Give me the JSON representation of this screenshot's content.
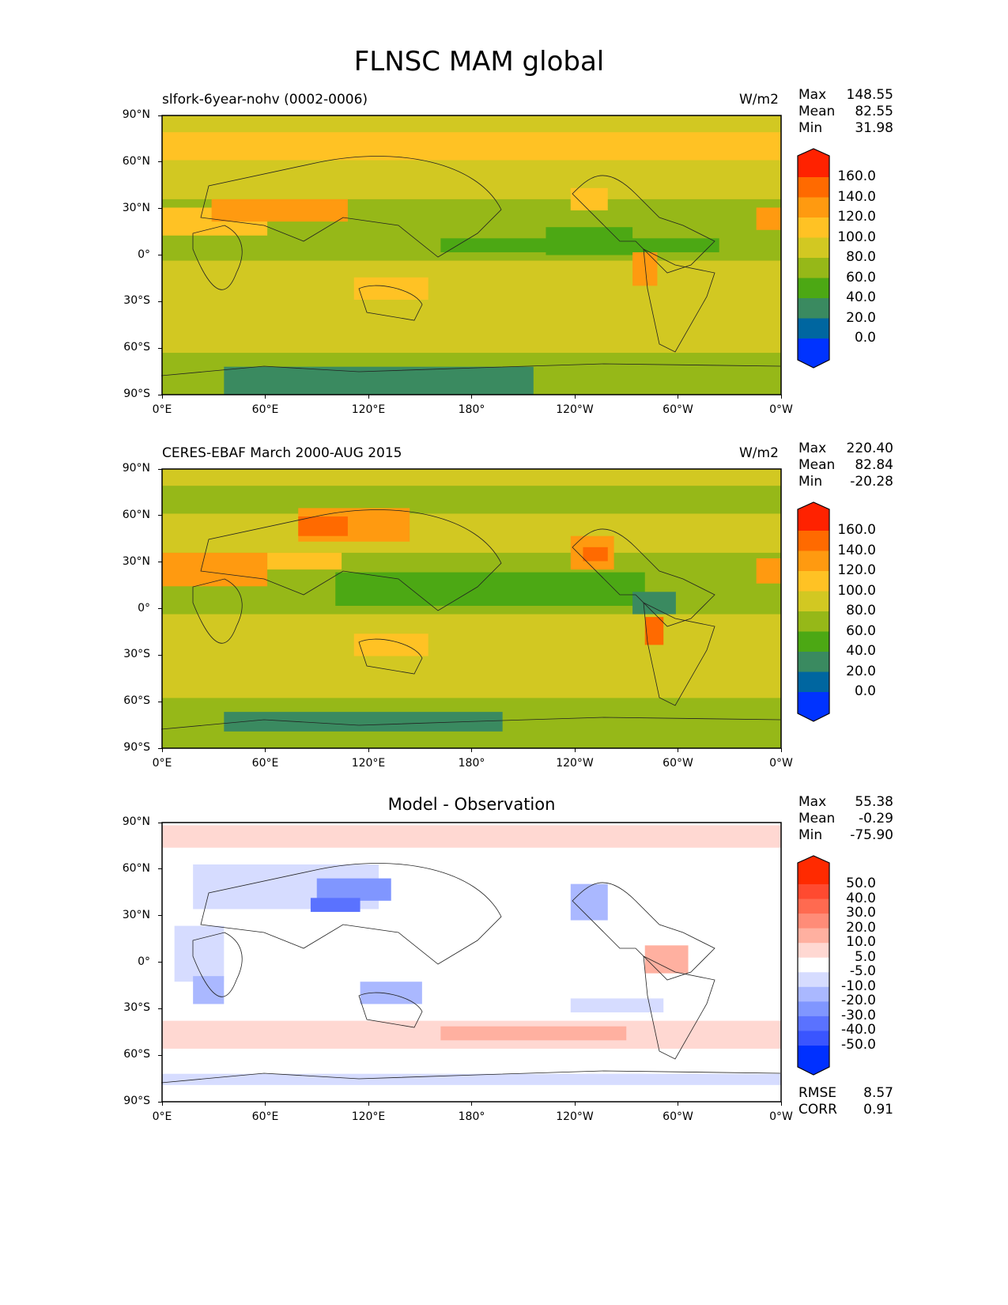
{
  "title": "FLNSC MAM global",
  "x_ticks": [
    "0°E",
    "60°E",
    "120°E",
    "180°",
    "120°W",
    "60°W",
    "0°W"
  ],
  "y_ticks": [
    "90°N",
    "60°N",
    "30°N",
    "0°",
    "30°S",
    "60°S",
    "90°S"
  ],
  "chart_data": [
    {
      "type": "heatmap",
      "title": "slfork-6year-nohv (0002-0006)",
      "units": "W/m2",
      "stats": {
        "max_label": "Max",
        "max": "148.55",
        "mean_label": "Mean",
        "mean": "82.55",
        "min_label": "Min",
        "min": "31.98"
      },
      "levels": [
        "0.0",
        "20.0",
        "40.0",
        "60.0",
        "80.0",
        "100.0",
        "120.0",
        "140.0",
        "160.0"
      ],
      "colors": [
        "#0033ff",
        "#0066a0",
        "#3a8a60",
        "#4ca814",
        "#96b818",
        "#d2c822",
        "#ffc224",
        "#ff9a10",
        "#ff6a00",
        "#ff2200"
      ],
      "xlim": [
        0,
        360
      ],
      "ylim": [
        -90,
        90
      ]
    },
    {
      "type": "heatmap",
      "title": "CERES-EBAF March 2000-AUG 2015",
      "units": "W/m2",
      "stats": {
        "max_label": "Max",
        "max": "220.40",
        "mean_label": "Mean",
        "mean": "82.84",
        "min_label": "Min",
        "min": "-20.28"
      },
      "levels": [
        "0.0",
        "20.0",
        "40.0",
        "60.0",
        "80.0",
        "100.0",
        "120.0",
        "140.0",
        "160.0"
      ],
      "colors": [
        "#0033ff",
        "#0066a0",
        "#3a8a60",
        "#4ca814",
        "#96b818",
        "#d2c822",
        "#ffc224",
        "#ff9a10",
        "#ff6a00",
        "#ff2200"
      ],
      "xlim": [
        0,
        360
      ],
      "ylim": [
        -90,
        90
      ]
    },
    {
      "type": "heatmap",
      "title": "Model - Observation",
      "units": "",
      "stats": {
        "max_label": "Max",
        "max": "55.38",
        "mean_label": "Mean",
        "mean": "-0.29",
        "min_label": "Min",
        "min": "-75.90"
      },
      "levels": [
        "-50.0",
        "-40.0",
        "-30.0",
        "-20.0",
        "-10.0",
        "-5.0",
        "5.0",
        "10.0",
        "20.0",
        "30.0",
        "40.0",
        "50.0"
      ],
      "colors": [
        "#0030ff",
        "#3a55ff",
        "#5a72ff",
        "#8096ff",
        "#aab8ff",
        "#d6dcff",
        "#ffffff",
        "#ffd8d2",
        "#ffb0a0",
        "#ff8c78",
        "#ff6a50",
        "#ff4a30",
        "#ff2a00"
      ],
      "metrics": {
        "rmse_label": "RMSE",
        "rmse": "8.57",
        "corr_label": "CORR",
        "corr": "0.91"
      },
      "xlim": [
        0,
        360
      ],
      "ylim": [
        -90,
        90
      ]
    }
  ]
}
